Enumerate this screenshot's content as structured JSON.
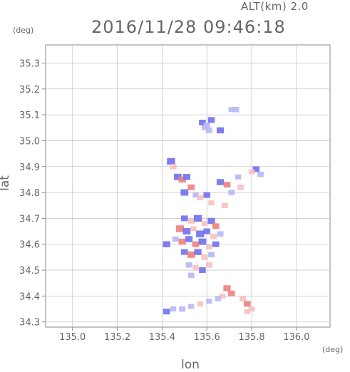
{
  "header": {
    "altitude_label": "ALT(km) 2.0",
    "datetime": "2016/11/28 09:46:18"
  },
  "chart_data": {
    "type": "heatmap",
    "title": "2016/11/28 09:46:18",
    "subtitle": "ALT(km) 2.0",
    "xlabel": "lon",
    "ylabel": "lat",
    "x_unit": "(deg)",
    "y_unit": "(deg)",
    "xlim": [
      134.88,
      136.15
    ],
    "ylim": [
      34.28,
      35.37
    ],
    "xticks": [
      135.0,
      135.2,
      135.4,
      135.6,
      135.8,
      136.0
    ],
    "xtick_labels": [
      "135.0",
      "135.2",
      "135.4",
      "135.6",
      "135.8",
      "136.0"
    ],
    "yticks": [
      34.3,
      34.4,
      34.5,
      34.6,
      34.7,
      34.8,
      34.9,
      35.0,
      35.1,
      35.2,
      35.3
    ],
    "ytick_labels": [
      "34.3",
      "34.4",
      "34.5",
      "34.6",
      "34.7",
      "34.8",
      "34.9",
      "35.0",
      "35.1",
      "35.2",
      "35.3"
    ],
    "grid": true,
    "colors": {
      "positive": "#f08080",
      "negative": "#7070f0",
      "light_negative": "#b8b8f4",
      "light_positive": "#f6c0c0"
    },
    "cells": [
      {
        "lon": 135.58,
        "lat": 35.07,
        "v": -0.6
      },
      {
        "lon": 135.6,
        "lat": 35.06,
        "v": -0.5
      },
      {
        "lon": 135.62,
        "lat": 35.08,
        "v": -0.6
      },
      {
        "lon": 135.59,
        "lat": 35.05,
        "v": -0.4
      },
      {
        "lon": 135.61,
        "lat": 35.04,
        "v": -0.5
      },
      {
        "lon": 135.66,
        "lat": 35.04,
        "v": -0.7
      },
      {
        "lon": 135.71,
        "lat": 35.12,
        "v": -0.4
      },
      {
        "lon": 135.73,
        "lat": 35.12,
        "v": -0.5
      },
      {
        "lon": 135.44,
        "lat": 34.92,
        "v": -0.9
      },
      {
        "lon": 135.45,
        "lat": 34.9,
        "v": 0.5
      },
      {
        "lon": 135.47,
        "lat": 34.86,
        "v": -0.8
      },
      {
        "lon": 135.49,
        "lat": 34.85,
        "v": 0.7
      },
      {
        "lon": 135.51,
        "lat": 34.86,
        "v": -0.7
      },
      {
        "lon": 135.5,
        "lat": 34.8,
        "v": -0.8
      },
      {
        "lon": 135.53,
        "lat": 34.82,
        "v": 0.6
      },
      {
        "lon": 135.55,
        "lat": 34.79,
        "v": -0.4
      },
      {
        "lon": 135.57,
        "lat": 34.78,
        "v": 0.5
      },
      {
        "lon": 135.6,
        "lat": 34.79,
        "v": -0.6
      },
      {
        "lon": 135.62,
        "lat": 34.76,
        "v": 0.4
      },
      {
        "lon": 135.66,
        "lat": 34.84,
        "v": -0.7
      },
      {
        "lon": 135.69,
        "lat": 34.83,
        "v": 0.6
      },
      {
        "lon": 135.71,
        "lat": 34.8,
        "v": -0.5
      },
      {
        "lon": 135.68,
        "lat": 34.75,
        "v": 0.5
      },
      {
        "lon": 135.74,
        "lat": 34.86,
        "v": -0.4
      },
      {
        "lon": 135.75,
        "lat": 34.82,
        "v": 0.5
      },
      {
        "lon": 135.82,
        "lat": 34.89,
        "v": -0.6
      },
      {
        "lon": 135.84,
        "lat": 34.87,
        "v": -0.5
      },
      {
        "lon": 135.8,
        "lat": 34.88,
        "v": 0.4
      },
      {
        "lon": 135.5,
        "lat": 34.7,
        "v": -0.6
      },
      {
        "lon": 135.53,
        "lat": 34.69,
        "v": 0.5
      },
      {
        "lon": 135.56,
        "lat": 34.7,
        "v": -0.9
      },
      {
        "lon": 135.59,
        "lat": 34.68,
        "v": 0.4
      },
      {
        "lon": 135.62,
        "lat": 34.69,
        "v": -0.7
      },
      {
        "lon": 135.64,
        "lat": 34.67,
        "v": 0.6
      },
      {
        "lon": 135.48,
        "lat": 34.66,
        "v": 0.9
      },
      {
        "lon": 135.51,
        "lat": 34.65,
        "v": -0.8
      },
      {
        "lon": 135.54,
        "lat": 34.66,
        "v": 0.4
      },
      {
        "lon": 135.57,
        "lat": 34.64,
        "v": -0.9
      },
      {
        "lon": 135.6,
        "lat": 34.65,
        "v": -0.6
      },
      {
        "lon": 135.63,
        "lat": 34.63,
        "v": 0.5
      },
      {
        "lon": 135.66,
        "lat": 34.64,
        "v": -0.5
      },
      {
        "lon": 135.46,
        "lat": 34.62,
        "v": -0.5
      },
      {
        "lon": 135.49,
        "lat": 34.61,
        "v": 0.7
      },
      {
        "lon": 135.52,
        "lat": 34.62,
        "v": -0.7
      },
      {
        "lon": 135.55,
        "lat": 34.6,
        "v": 0.6
      },
      {
        "lon": 135.58,
        "lat": 34.61,
        "v": -0.8
      },
      {
        "lon": 135.61,
        "lat": 34.59,
        "v": 0.4
      },
      {
        "lon": 135.64,
        "lat": 34.6,
        "v": -0.6
      },
      {
        "lon": 135.42,
        "lat": 34.6,
        "v": -0.7
      },
      {
        "lon": 135.5,
        "lat": 34.57,
        "v": -0.6
      },
      {
        "lon": 135.53,
        "lat": 34.56,
        "v": 0.8
      },
      {
        "lon": 135.56,
        "lat": 34.57,
        "v": -0.7
      },
      {
        "lon": 135.59,
        "lat": 34.55,
        "v": 0.5
      },
      {
        "lon": 135.62,
        "lat": 34.56,
        "v": -0.5
      },
      {
        "lon": 135.52,
        "lat": 34.52,
        "v": -0.5
      },
      {
        "lon": 135.55,
        "lat": 34.51,
        "v": 0.4
      },
      {
        "lon": 135.58,
        "lat": 34.5,
        "v": -0.6
      },
      {
        "lon": 135.53,
        "lat": 34.48,
        "v": -0.5
      },
      {
        "lon": 135.61,
        "lat": 34.52,
        "v": 0.5
      },
      {
        "lon": 135.69,
        "lat": 34.43,
        "v": 0.7
      },
      {
        "lon": 135.71,
        "lat": 34.41,
        "v": 0.6
      },
      {
        "lon": 135.67,
        "lat": 34.4,
        "v": 0.4
      },
      {
        "lon": 135.65,
        "lat": 34.39,
        "v": -0.4
      },
      {
        "lon": 135.76,
        "lat": 34.39,
        "v": 0.5
      },
      {
        "lon": 135.78,
        "lat": 34.37,
        "v": 0.6
      },
      {
        "lon": 135.8,
        "lat": 34.35,
        "v": 0.5
      },
      {
        "lon": 135.78,
        "lat": 34.34,
        "v": 0.4
      },
      {
        "lon": 135.42,
        "lat": 34.34,
        "v": -0.6
      },
      {
        "lon": 135.45,
        "lat": 34.35,
        "v": -0.4
      },
      {
        "lon": 135.49,
        "lat": 34.35,
        "v": -0.5
      },
      {
        "lon": 135.53,
        "lat": 34.36,
        "v": -0.4
      },
      {
        "lon": 135.57,
        "lat": 34.37,
        "v": 0.4
      },
      {
        "lon": 135.61,
        "lat": 34.38,
        "v": -0.4
      }
    ]
  }
}
